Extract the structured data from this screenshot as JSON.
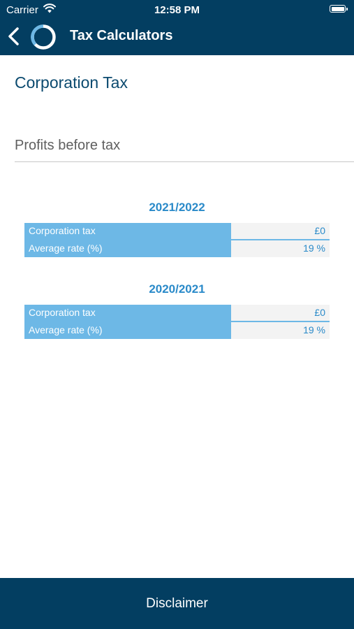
{
  "status_bar": {
    "carrier": "Carrier",
    "time": "12:58 PM"
  },
  "nav": {
    "title": "Tax Calculators",
    "back_icon": "chevron-left-icon",
    "logo_icon": "ring-logo-icon"
  },
  "page": {
    "title": "Corporation Tax"
  },
  "profits_input": {
    "placeholder": "Profits before tax",
    "value": ""
  },
  "results": [
    {
      "year": "2021/2022",
      "rows": [
        {
          "label": "Corporation tax",
          "value": "£0"
        },
        {
          "label": "Average rate (%)",
          "value": "19 %"
        }
      ]
    },
    {
      "year": "2020/2021",
      "rows": [
        {
          "label": "Corporation tax",
          "value": "£0"
        },
        {
          "label": "Average rate (%)",
          "value": "19 %"
        }
      ]
    }
  ],
  "footer": {
    "disclaimer_label": "Disclaimer"
  },
  "colors": {
    "header_bg": "#033e61",
    "accent": "#2a8ac9",
    "table_label_bg": "#6db8e6"
  }
}
